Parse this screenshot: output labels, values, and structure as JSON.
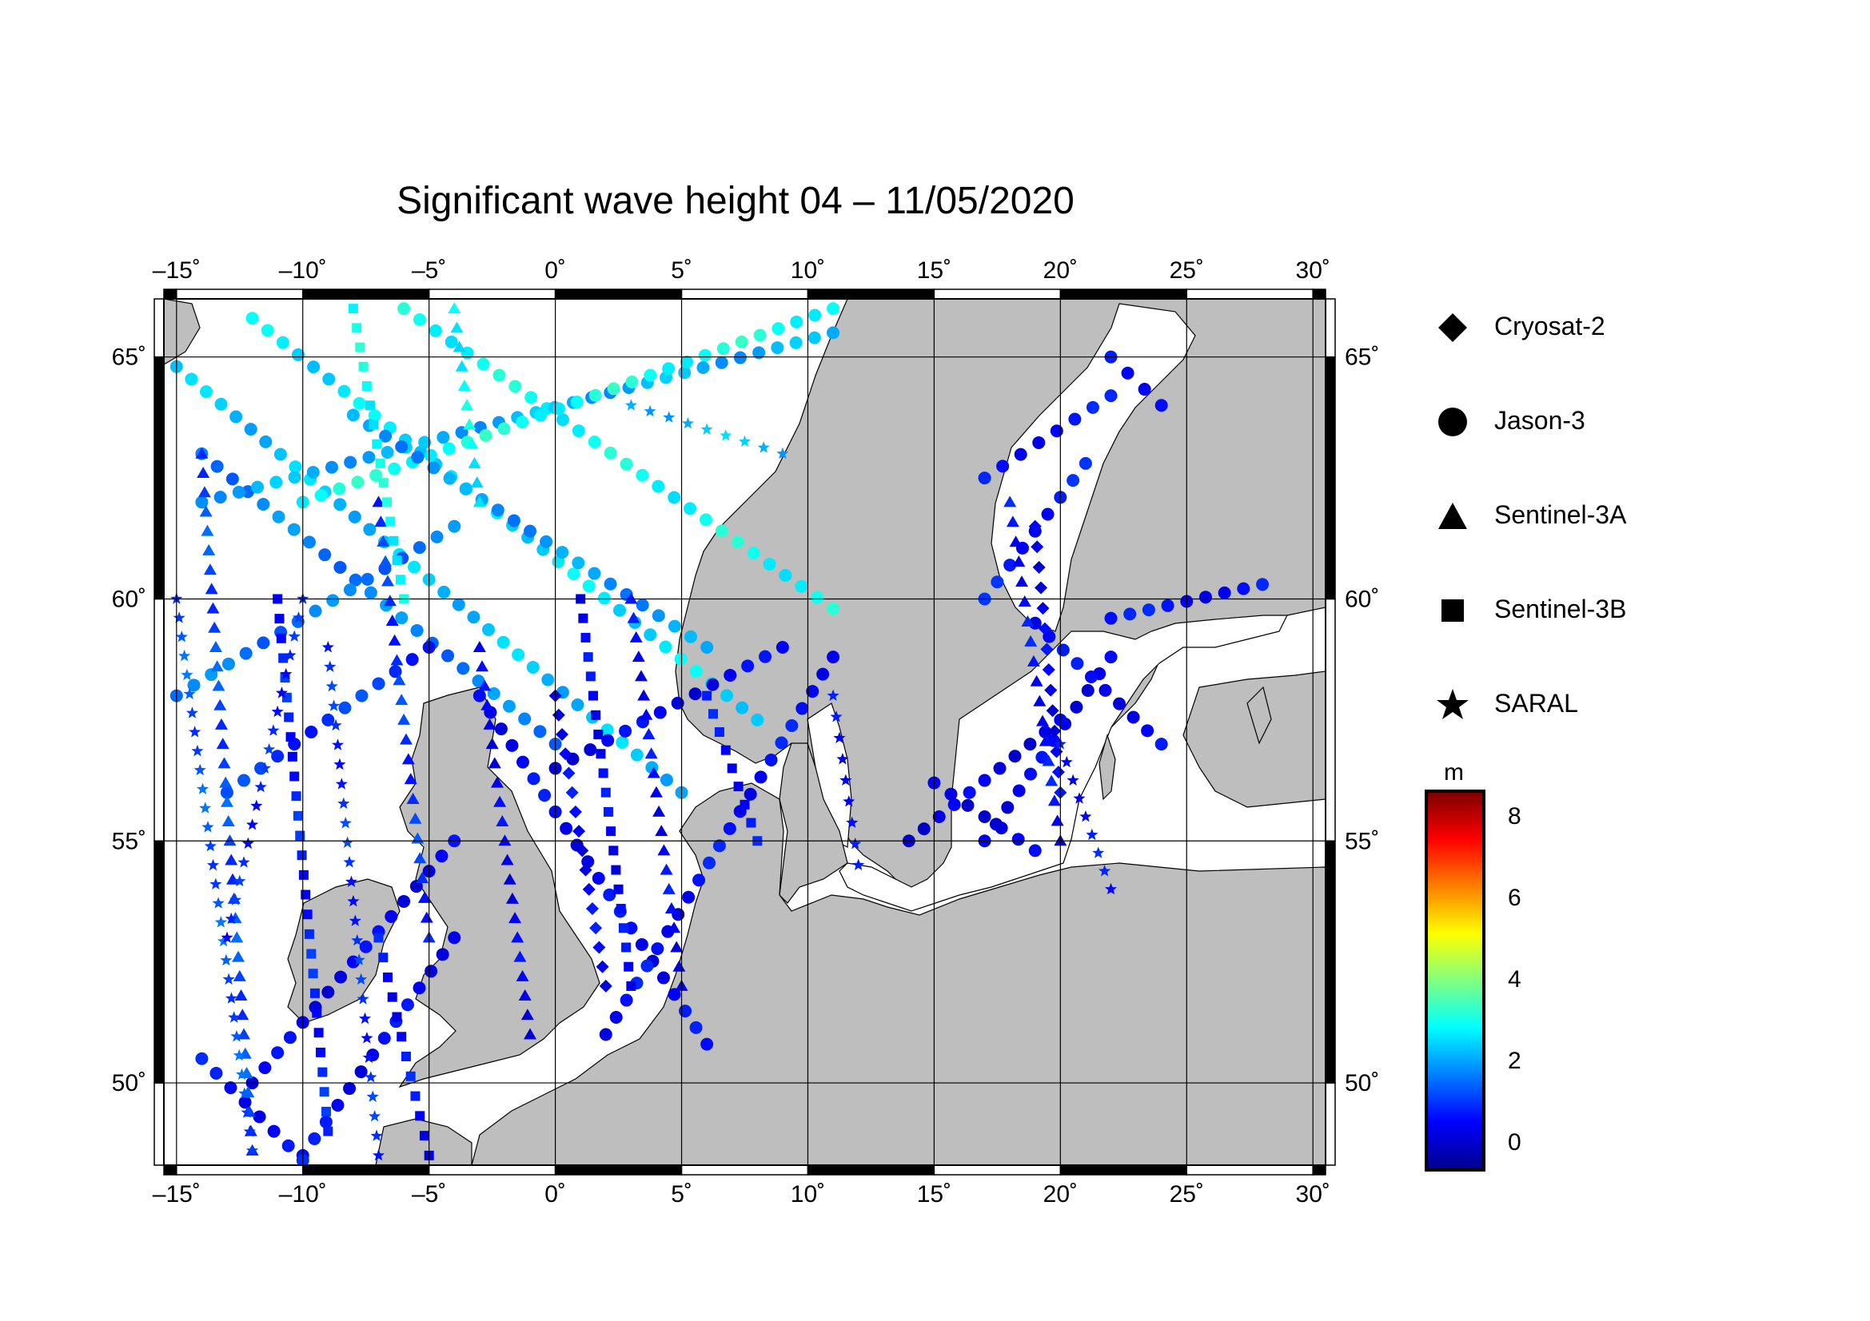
{
  "title": "Significant wave height 04 – 11/05/2020",
  "map": {
    "lon_range": [
      -15.5,
      30.5
    ],
    "lat_range": [
      48.3,
      66.2
    ],
    "lon_ticks": [
      {
        "value": -15,
        "label": "–15˚"
      },
      {
        "value": -10,
        "label": "–10˚"
      },
      {
        "value": -5,
        "label": "–5˚"
      },
      {
        "value": 0,
        "label": "0˚"
      },
      {
        "value": 5,
        "label": "5˚"
      },
      {
        "value": 10,
        "label": "10˚"
      },
      {
        "value": 15,
        "label": "15˚"
      },
      {
        "value": 20,
        "label": "20˚"
      },
      {
        "value": 25,
        "label": "25˚"
      },
      {
        "value": 30,
        "label": "30˚"
      }
    ],
    "lat_ticks": [
      {
        "value": 50,
        "label": "50˚"
      },
      {
        "value": 55,
        "label": "55˚"
      },
      {
        "value": 60,
        "label": "60˚"
      },
      {
        "value": 65,
        "label": "65˚"
      }
    ],
    "land_color": "#bebebe",
    "sea_color": "#ffffff",
    "grid": true
  },
  "legend": {
    "placement": "right",
    "items": [
      {
        "label": "Cryosat-2",
        "icon": "diamond-icon"
      },
      {
        "label": "Jason-3",
        "icon": "circle-icon"
      },
      {
        "label": "Sentinel-3A",
        "icon": "triangle-icon"
      },
      {
        "label": "Sentinel-3B",
        "icon": "square-icon"
      },
      {
        "label": "SARAL",
        "icon": "star-icon"
      }
    ]
  },
  "colorbar": {
    "unit": "m",
    "range": [
      -0.6,
      8.6
    ],
    "ticks": [
      {
        "value": 0,
        "label": "0"
      },
      {
        "value": 2,
        "label": "2"
      },
      {
        "value": 4,
        "label": "4"
      },
      {
        "value": 6,
        "label": "6"
      },
      {
        "value": 8,
        "label": "8"
      }
    ],
    "colors": [
      "#00008f",
      "#0000ff",
      "#0080ff",
      "#00ffff",
      "#80ff80",
      "#ffff00",
      "#ff8000",
      "#ff0000",
      "#800000"
    ]
  },
  "chart_data": {
    "type": "scatter",
    "tracks": [
      {
        "satellite": "Jason-3",
        "swh_m": 2.3,
        "points": [
          [
            -15,
            64.8
          ],
          [
            5,
            56.0
          ]
        ]
      },
      {
        "satellite": "Jason-3",
        "swh_m": 2.6,
        "points": [
          [
            -12,
            65.8
          ],
          [
            8,
            57.5
          ]
        ]
      },
      {
        "satellite": "Jason-3",
        "swh_m": 2.9,
        "points": [
          [
            -6,
            66.0
          ],
          [
            11,
            59.8
          ]
        ]
      },
      {
        "satellite": "Jason-3",
        "swh_m": 1.7,
        "points": [
          [
            -14,
            63.0
          ],
          [
            0,
            57.0
          ]
        ]
      },
      {
        "satellite": "Jason-3",
        "swh_m": 2.1,
        "points": [
          [
            -14,
            62.0
          ],
          [
            11,
            65.5
          ]
        ]
      },
      {
        "satellite": "Jason-3",
        "swh_m": 3.0,
        "points": [
          [
            -10,
            62.0
          ],
          [
            11,
            66.0
          ]
        ]
      },
      {
        "satellite": "Jason-3",
        "swh_m": 1.6,
        "points": [
          [
            -15,
            58.0
          ],
          [
            -4,
            61.5
          ]
        ]
      },
      {
        "satellite": "Jason-3",
        "swh_m": 1.0,
        "points": [
          [
            -13,
            56.0
          ],
          [
            -5,
            59.0
          ]
        ]
      },
      {
        "satellite": "Jason-3",
        "swh_m": 1.9,
        "points": [
          [
            -8,
            63.8
          ],
          [
            6,
            59.0
          ]
        ]
      },
      {
        "satellite": "Jason-3",
        "swh_m": 0.5,
        "points": [
          [
            -3,
            58.0
          ],
          [
            6,
            50.8
          ]
        ]
      },
      {
        "satellite": "Jason-3",
        "swh_m": 0.4,
        "points": [
          [
            0,
            56.5
          ],
          [
            9,
            59.0
          ]
        ]
      },
      {
        "satellite": "Jason-3",
        "swh_m": 0.6,
        "points": [
          [
            2,
            51.0
          ],
          [
            11,
            58.8
          ]
        ]
      },
      {
        "satellite": "Jason-3",
        "swh_m": 0.4,
        "points": [
          [
            -12,
            50.0
          ],
          [
            -4,
            55.0
          ]
        ]
      },
      {
        "satellite": "Jason-3",
        "swh_m": 0.5,
        "points": [
          [
            -10,
            48.5
          ],
          [
            -4,
            53.0
          ]
        ]
      },
      {
        "satellite": "Jason-3",
        "swh_m": 0.6,
        "points": [
          [
            -14,
            50.5
          ],
          [
            -10,
            48.4
          ]
        ]
      },
      {
        "satellite": "Jason-3",
        "swh_m": 0.3,
        "points": [
          [
            15,
            56.2
          ],
          [
            19,
            54.8
          ]
        ]
      },
      {
        "satellite": "Jason-3",
        "swh_m": 0.4,
        "points": [
          [
            17,
            55.0
          ],
          [
            22,
            58.8
          ]
        ]
      },
      {
        "satellite": "Jason-3",
        "swh_m": 0.3,
        "points": [
          [
            14,
            55.0
          ],
          [
            20,
            57.5
          ]
        ]
      },
      {
        "satellite": "Jason-3",
        "swh_m": 0.5,
        "points": [
          [
            19,
            59.5
          ],
          [
            24,
            57.0
          ]
        ]
      },
      {
        "satellite": "Jason-3",
        "swh_m": 0.6,
        "points": [
          [
            22,
            59.6
          ],
          [
            28,
            60.3
          ]
        ]
      },
      {
        "satellite": "Jason-3",
        "swh_m": 0.7,
        "points": [
          [
            17,
            60.0
          ],
          [
            21,
            62.8
          ]
        ]
      },
      {
        "satellite": "Jason-3",
        "swh_m": 0.6,
        "points": [
          [
            17,
            62.5
          ],
          [
            22,
            64.2
          ]
        ]
      },
      {
        "satellite": "Jason-3",
        "swh_m": 0.8,
        "points": [
          [
            22,
            65.0
          ],
          [
            24,
            64.0
          ]
        ]
      },
      {
        "satellite": "Sentinel-3A",
        "swh_m": 1.2,
        "points": [
          [
            -14,
            63.0
          ],
          [
            -12,
            48.6
          ]
        ]
      },
      {
        "satellite": "Sentinel-3A",
        "swh_m": 1.0,
        "points": [
          [
            -7,
            62.0
          ],
          [
            -5,
            53.0
          ]
        ]
      },
      {
        "satellite": "Sentinel-3A",
        "swh_m": 0.4,
        "points": [
          [
            -3,
            59.0
          ],
          [
            -1,
            51.0
          ]
        ]
      },
      {
        "satellite": "Sentinel-3A",
        "swh_m": 0.5,
        "points": [
          [
            3,
            60.0
          ],
          [
            5,
            52.0
          ]
        ]
      },
      {
        "satellite": "Sentinel-3A",
        "swh_m": 0.6,
        "points": [
          [
            18,
            62.0
          ],
          [
            20,
            55.0
          ]
        ]
      },
      {
        "satellite": "Sentinel-3A",
        "swh_m": 2.8,
        "points": [
          [
            -4,
            66.0
          ],
          [
            -3,
            62.0
          ]
        ]
      },
      {
        "satellite": "Sentinel-3B",
        "swh_m": 0.8,
        "points": [
          [
            -11,
            60.0
          ],
          [
            -9,
            49.0
          ]
        ]
      },
      {
        "satellite": "Sentinel-3B",
        "swh_m": 0.5,
        "points": [
          [
            1,
            60.0
          ],
          [
            3,
            52.0
          ]
        ]
      },
      {
        "satellite": "Sentinel-3B",
        "swh_m": 2.9,
        "points": [
          [
            -8,
            66.0
          ],
          [
            -6,
            60.0
          ]
        ]
      },
      {
        "satellite": "Sentinel-3B",
        "swh_m": 0.6,
        "points": [
          [
            6,
            58.0
          ],
          [
            8,
            55.0
          ]
        ]
      },
      {
        "satellite": "Sentinel-3B",
        "swh_m": 0.6,
        "points": [
          [
            -7,
            53.0
          ],
          [
            -5,
            48.5
          ]
        ]
      },
      {
        "satellite": "Cryosat-2",
        "swh_m": 0.4,
        "points": [
          [
            19,
            61.5
          ],
          [
            20,
            56.0
          ]
        ]
      },
      {
        "satellite": "Cryosat-2",
        "swh_m": 0.5,
        "points": [
          [
            0,
            58.0
          ],
          [
            2,
            52.0
          ]
        ]
      },
      {
        "satellite": "SARAL",
        "swh_m": 1.3,
        "points": [
          [
            -15,
            60.0
          ],
          [
            -12,
            48.6
          ]
        ]
      },
      {
        "satellite": "SARAL",
        "swh_m": 0.9,
        "points": [
          [
            -9,
            59.0
          ],
          [
            -7,
            48.5
          ]
        ]
      },
      {
        "satellite": "SARAL",
        "swh_m": 0.8,
        "points": [
          [
            -10,
            60.0
          ],
          [
            -13,
            53.0
          ]
        ]
      },
      {
        "satellite": "SARAL",
        "swh_m": 0.5,
        "points": [
          [
            11,
            58.0
          ],
          [
            12,
            54.5
          ]
        ]
      },
      {
        "satellite": "SARAL",
        "swh_m": 0.6,
        "points": [
          [
            20,
            57.0
          ],
          [
            22,
            54.0
          ]
        ]
      },
      {
        "satellite": "SARAL",
        "swh_m": 2.2,
        "points": [
          [
            3,
            64.0
          ],
          [
            9,
            63.0
          ]
        ]
      }
    ]
  }
}
